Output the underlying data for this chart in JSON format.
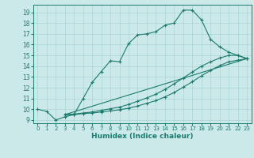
{
  "title": "",
  "xlabel": "Humidex (Indice chaleur)",
  "bg_color": "#cce9e9",
  "grid_color": "#aad4d4",
  "line_color": "#1a7a6e",
  "marker": "+",
  "xlim": [
    -0.5,
    23.5
  ],
  "ylim": [
    8.7,
    19.7
  ],
  "yticks": [
    9,
    10,
    11,
    12,
    13,
    14,
    15,
    16,
    17,
    18,
    19
  ],
  "xticks": [
    0,
    1,
    2,
    3,
    4,
    5,
    6,
    7,
    8,
    9,
    10,
    11,
    12,
    13,
    14,
    15,
    16,
    17,
    18,
    19,
    20,
    21,
    22,
    23
  ],
  "lines": [
    {
      "x": [
        0,
        1,
        2,
        3,
        4,
        5,
        6,
        7,
        8,
        9,
        10,
        11,
        12,
        13,
        14,
        15,
        16,
        17,
        18,
        19,
        20,
        21,
        22,
        23
      ],
      "y": [
        10,
        9.8,
        9.0,
        9.3,
        9.5,
        11.0,
        12.5,
        13.5,
        14.5,
        14.4,
        16.1,
        16.9,
        17.0,
        17.2,
        17.8,
        18.0,
        19.2,
        19.2,
        18.3,
        16.5,
        15.8,
        15.3,
        15.0,
        14.7
      ]
    },
    {
      "x": [
        3,
        23
      ],
      "y": [
        9.5,
        14.7
      ]
    },
    {
      "x": [
        3,
        23
      ],
      "y": [
        9.5,
        14.7
      ]
    }
  ],
  "line2": {
    "x": [
      3,
      4,
      5,
      6,
      7,
      8,
      9,
      10,
      11,
      12,
      13,
      14,
      15,
      16,
      17,
      18,
      19,
      20,
      21,
      22,
      23
    ],
    "y": [
      9.5,
      9.55,
      9.65,
      9.75,
      9.9,
      10.05,
      10.2,
      10.45,
      10.75,
      11.05,
      11.4,
      11.85,
      12.35,
      12.9,
      13.45,
      14.0,
      14.4,
      14.75,
      15.0,
      15.0,
      14.7
    ]
  },
  "line3": {
    "x": [
      3,
      4,
      5,
      6,
      7,
      8,
      9,
      10,
      11,
      12,
      13,
      14,
      15,
      16,
      17,
      18,
      19,
      20,
      21,
      22,
      23
    ],
    "y": [
      9.5,
      9.5,
      9.6,
      9.65,
      9.75,
      9.85,
      9.95,
      10.1,
      10.3,
      10.55,
      10.8,
      11.15,
      11.55,
      12.05,
      12.55,
      13.1,
      13.6,
      14.05,
      14.4,
      14.55,
      14.7
    ]
  }
}
